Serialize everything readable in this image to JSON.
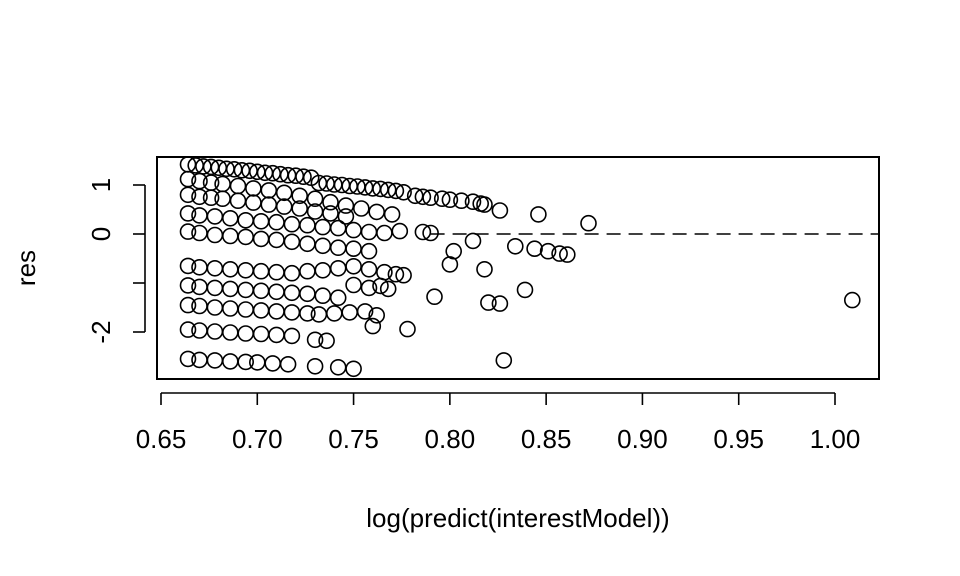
{
  "chart_data": {
    "type": "scatter",
    "title": "",
    "xlabel": "log(predict(interestModel))",
    "ylabel": "res",
    "xlim": [
      0.66,
      1.01
    ],
    "ylim": [
      -2.95,
      1.55
    ],
    "x_ticks": [
      0.65,
      0.7,
      0.75,
      0.8,
      0.85,
      0.9,
      0.95,
      1.0
    ],
    "x_tick_labels": [
      "0.65",
      "0.70",
      "0.75",
      "0.80",
      "0.85",
      "0.90",
      "0.95",
      "1.00"
    ],
    "y_ticks": [
      -2,
      -1,
      0,
      1
    ],
    "y_tick_labels": [
      "-2",
      "",
      "0",
      "1"
    ],
    "reference_line": {
      "y": 0,
      "style": "dashed"
    },
    "marker": "open-circle",
    "grid": false,
    "points": [
      {
        "x": 0.664,
        "y": 1.42
      },
      {
        "x": 0.668,
        "y": 1.4
      },
      {
        "x": 0.672,
        "y": 1.38
      },
      {
        "x": 0.676,
        "y": 1.37
      },
      {
        "x": 0.68,
        "y": 1.35
      },
      {
        "x": 0.684,
        "y": 1.33
      },
      {
        "x": 0.688,
        "y": 1.32
      },
      {
        "x": 0.692,
        "y": 1.3
      },
      {
        "x": 0.696,
        "y": 1.29
      },
      {
        "x": 0.7,
        "y": 1.27
      },
      {
        "x": 0.704,
        "y": 1.25
      },
      {
        "x": 0.708,
        "y": 1.24
      },
      {
        "x": 0.712,
        "y": 1.22
      },
      {
        "x": 0.716,
        "y": 1.2
      },
      {
        "x": 0.72,
        "y": 1.19
      },
      {
        "x": 0.724,
        "y": 1.17
      },
      {
        "x": 0.728,
        "y": 1.15
      },
      {
        "x": 0.732,
        "y": 1.04
      },
      {
        "x": 0.736,
        "y": 1.03
      },
      {
        "x": 0.74,
        "y": 1.01
      },
      {
        "x": 0.744,
        "y": 1.0
      },
      {
        "x": 0.748,
        "y": 0.98
      },
      {
        "x": 0.752,
        "y": 0.97
      },
      {
        "x": 0.756,
        "y": 0.95
      },
      {
        "x": 0.76,
        "y": 0.93
      },
      {
        "x": 0.764,
        "y": 0.92
      },
      {
        "x": 0.768,
        "y": 0.9
      },
      {
        "x": 0.772,
        "y": 0.88
      },
      {
        "x": 0.776,
        "y": 0.85
      },
      {
        "x": 0.782,
        "y": 0.78
      },
      {
        "x": 0.786,
        "y": 0.76
      },
      {
        "x": 0.79,
        "y": 0.74
      },
      {
        "x": 0.796,
        "y": 0.72
      },
      {
        "x": 0.8,
        "y": 0.7
      },
      {
        "x": 0.806,
        "y": 0.68
      },
      {
        "x": 0.812,
        "y": 0.66
      },
      {
        "x": 0.816,
        "y": 0.62
      },
      {
        "x": 0.818,
        "y": 0.6
      },
      {
        "x": 0.664,
        "y": 1.12
      },
      {
        "x": 0.67,
        "y": 1.08
      },
      {
        "x": 0.676,
        "y": 1.05
      },
      {
        "x": 0.682,
        "y": 1.02
      },
      {
        "x": 0.69,
        "y": 0.98
      },
      {
        "x": 0.698,
        "y": 0.93
      },
      {
        "x": 0.706,
        "y": 0.89
      },
      {
        "x": 0.714,
        "y": 0.84
      },
      {
        "x": 0.722,
        "y": 0.78
      },
      {
        "x": 0.73,
        "y": 0.72
      },
      {
        "x": 0.738,
        "y": 0.65
      },
      {
        "x": 0.746,
        "y": 0.58
      },
      {
        "x": 0.754,
        "y": 0.52
      },
      {
        "x": 0.762,
        "y": 0.45
      },
      {
        "x": 0.77,
        "y": 0.4
      },
      {
        "x": 0.664,
        "y": 0.8
      },
      {
        "x": 0.67,
        "y": 0.76
      },
      {
        "x": 0.676,
        "y": 0.74
      },
      {
        "x": 0.682,
        "y": 0.72
      },
      {
        "x": 0.69,
        "y": 0.68
      },
      {
        "x": 0.698,
        "y": 0.64
      },
      {
        "x": 0.706,
        "y": 0.6
      },
      {
        "x": 0.714,
        "y": 0.56
      },
      {
        "x": 0.722,
        "y": 0.52
      },
      {
        "x": 0.73,
        "y": 0.46
      },
      {
        "x": 0.738,
        "y": 0.42
      },
      {
        "x": 0.746,
        "y": 0.36
      },
      {
        "x": 0.664,
        "y": 0.42
      },
      {
        "x": 0.67,
        "y": 0.38
      },
      {
        "x": 0.678,
        "y": 0.36
      },
      {
        "x": 0.686,
        "y": 0.32
      },
      {
        "x": 0.694,
        "y": 0.28
      },
      {
        "x": 0.702,
        "y": 0.26
      },
      {
        "x": 0.71,
        "y": 0.24
      },
      {
        "x": 0.718,
        "y": 0.2
      },
      {
        "x": 0.726,
        "y": 0.18
      },
      {
        "x": 0.734,
        "y": 0.14
      },
      {
        "x": 0.742,
        "y": 0.12
      },
      {
        "x": 0.75,
        "y": 0.08
      },
      {
        "x": 0.758,
        "y": 0.04
      },
      {
        "x": 0.766,
        "y": 0.02
      },
      {
        "x": 0.774,
        "y": 0.06
      },
      {
        "x": 0.786,
        "y": 0.04
      },
      {
        "x": 0.79,
        "y": 0.02
      },
      {
        "x": 0.664,
        "y": 0.05
      },
      {
        "x": 0.67,
        "y": 0.02
      },
      {
        "x": 0.678,
        "y": -0.02
      },
      {
        "x": 0.686,
        "y": -0.04
      },
      {
        "x": 0.694,
        "y": -0.06
      },
      {
        "x": 0.702,
        "y": -0.1
      },
      {
        "x": 0.71,
        "y": -0.12
      },
      {
        "x": 0.718,
        "y": -0.16
      },
      {
        "x": 0.726,
        "y": -0.2
      },
      {
        "x": 0.734,
        "y": -0.24
      },
      {
        "x": 0.742,
        "y": -0.28
      },
      {
        "x": 0.75,
        "y": -0.3
      },
      {
        "x": 0.758,
        "y": -0.35
      },
      {
        "x": 0.664,
        "y": -0.65
      },
      {
        "x": 0.67,
        "y": -0.68
      },
      {
        "x": 0.678,
        "y": -0.7
      },
      {
        "x": 0.686,
        "y": -0.72
      },
      {
        "x": 0.694,
        "y": -0.74
      },
      {
        "x": 0.702,
        "y": -0.76
      },
      {
        "x": 0.71,
        "y": -0.78
      },
      {
        "x": 0.718,
        "y": -0.8
      },
      {
        "x": 0.726,
        "y": -0.76
      },
      {
        "x": 0.734,
        "y": -0.74
      },
      {
        "x": 0.742,
        "y": -0.7
      },
      {
        "x": 0.75,
        "y": -0.66
      },
      {
        "x": 0.758,
        "y": -0.72
      },
      {
        "x": 0.766,
        "y": -0.78
      },
      {
        "x": 0.772,
        "y": -0.82
      },
      {
        "x": 0.776,
        "y": -0.84
      },
      {
        "x": 0.664,
        "y": -1.05
      },
      {
        "x": 0.67,
        "y": -1.08
      },
      {
        "x": 0.678,
        "y": -1.1
      },
      {
        "x": 0.686,
        "y": -1.12
      },
      {
        "x": 0.694,
        "y": -1.14
      },
      {
        "x": 0.702,
        "y": -1.16
      },
      {
        "x": 0.71,
        "y": -1.18
      },
      {
        "x": 0.718,
        "y": -1.2
      },
      {
        "x": 0.726,
        "y": -1.22
      },
      {
        "x": 0.734,
        "y": -1.26
      },
      {
        "x": 0.742,
        "y": -1.3
      },
      {
        "x": 0.75,
        "y": -1.04
      },
      {
        "x": 0.758,
        "y": -1.1
      },
      {
        "x": 0.764,
        "y": -1.06
      },
      {
        "x": 0.768,
        "y": -1.12
      },
      {
        "x": 0.664,
        "y": -1.45
      },
      {
        "x": 0.67,
        "y": -1.47
      },
      {
        "x": 0.678,
        "y": -1.5
      },
      {
        "x": 0.686,
        "y": -1.52
      },
      {
        "x": 0.694,
        "y": -1.54
      },
      {
        "x": 0.702,
        "y": -1.56
      },
      {
        "x": 0.71,
        "y": -1.58
      },
      {
        "x": 0.718,
        "y": -1.6
      },
      {
        "x": 0.726,
        "y": -1.62
      },
      {
        "x": 0.732,
        "y": -1.64
      },
      {
        "x": 0.74,
        "y": -1.62
      },
      {
        "x": 0.748,
        "y": -1.6
      },
      {
        "x": 0.756,
        "y": -1.58
      },
      {
        "x": 0.762,
        "y": -1.66
      },
      {
        "x": 0.664,
        "y": -1.95
      },
      {
        "x": 0.67,
        "y": -1.97
      },
      {
        "x": 0.678,
        "y": -1.99
      },
      {
        "x": 0.686,
        "y": -2.01
      },
      {
        "x": 0.694,
        "y": -2.03
      },
      {
        "x": 0.702,
        "y": -2.04
      },
      {
        "x": 0.71,
        "y": -2.06
      },
      {
        "x": 0.718,
        "y": -2.08
      },
      {
        "x": 0.664,
        "y": -2.55
      },
      {
        "x": 0.67,
        "y": -2.57
      },
      {
        "x": 0.678,
        "y": -2.58
      },
      {
        "x": 0.686,
        "y": -2.6
      },
      {
        "x": 0.694,
        "y": -2.61
      },
      {
        "x": 0.7,
        "y": -2.62
      },
      {
        "x": 0.708,
        "y": -2.64
      },
      {
        "x": 0.716,
        "y": -2.66
      },
      {
        "x": 0.73,
        "y": -2.16
      },
      {
        "x": 0.736,
        "y": -2.18
      },
      {
        "x": 0.73,
        "y": -2.7
      },
      {
        "x": 0.742,
        "y": -2.72
      },
      {
        "x": 0.75,
        "y": -2.75
      },
      {
        "x": 0.76,
        "y": -1.88
      },
      {
        "x": 0.778,
        "y": -1.94
      },
      {
        "x": 0.792,
        "y": -1.28
      },
      {
        "x": 0.8,
        "y": -0.62
      },
      {
        "x": 0.802,
        "y": -0.35
      },
      {
        "x": 0.812,
        "y": -0.14
      },
      {
        "x": 0.818,
        "y": -0.72
      },
      {
        "x": 0.82,
        "y": -1.4
      },
      {
        "x": 0.826,
        "y": -1.42
      },
      {
        "x": 0.828,
        "y": -2.58
      },
      {
        "x": 0.826,
        "y": 0.48
      },
      {
        "x": 0.834,
        "y": -0.25
      },
      {
        "x": 0.839,
        "y": -1.14
      },
      {
        "x": 0.844,
        "y": -0.3
      },
      {
        "x": 0.846,
        "y": 0.4
      },
      {
        "x": 0.851,
        "y": -0.35
      },
      {
        "x": 0.857,
        "y": -0.4
      },
      {
        "x": 0.861,
        "y": -0.42
      },
      {
        "x": 0.872,
        "y": 0.22
      },
      {
        "x": 1.009,
        "y": -1.35
      }
    ]
  }
}
